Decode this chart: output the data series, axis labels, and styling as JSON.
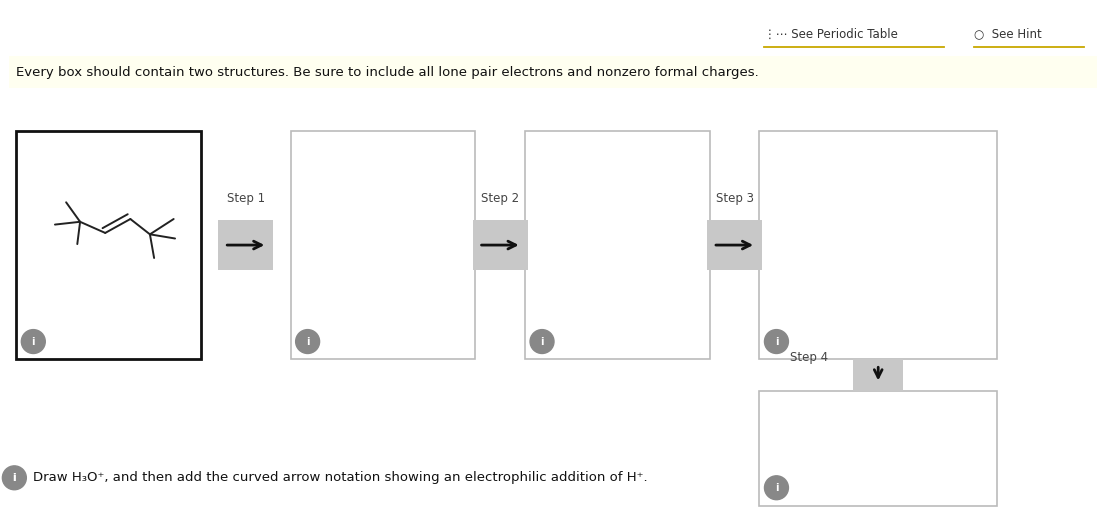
{
  "background_color": "#ffffff",
  "top_right_text1": "See Periodic Table",
  "top_right_text2": "See Hint",
  "top_right_underline_color": "#c8a800",
  "instruction_text": "Every box should contain two structures. Be sure to include all lone pair electrons and nonzero formal charges.",
  "instruction_bg": "#fffff0",
  "step_labels": [
    "Step 1",
    "Step 2",
    "Step 3",
    "Step 4"
  ],
  "box_border_gray": "#bbbbbb",
  "box_border_black": "#111111",
  "arrow_gray_bg": "#c8c8c8",
  "info_circle_color": "#888888",
  "bottom_text": "Draw H₃O⁺, and then add the curved arrow notation showing an electrophilic addition of H⁺.",
  "mol_color": "#222222"
}
